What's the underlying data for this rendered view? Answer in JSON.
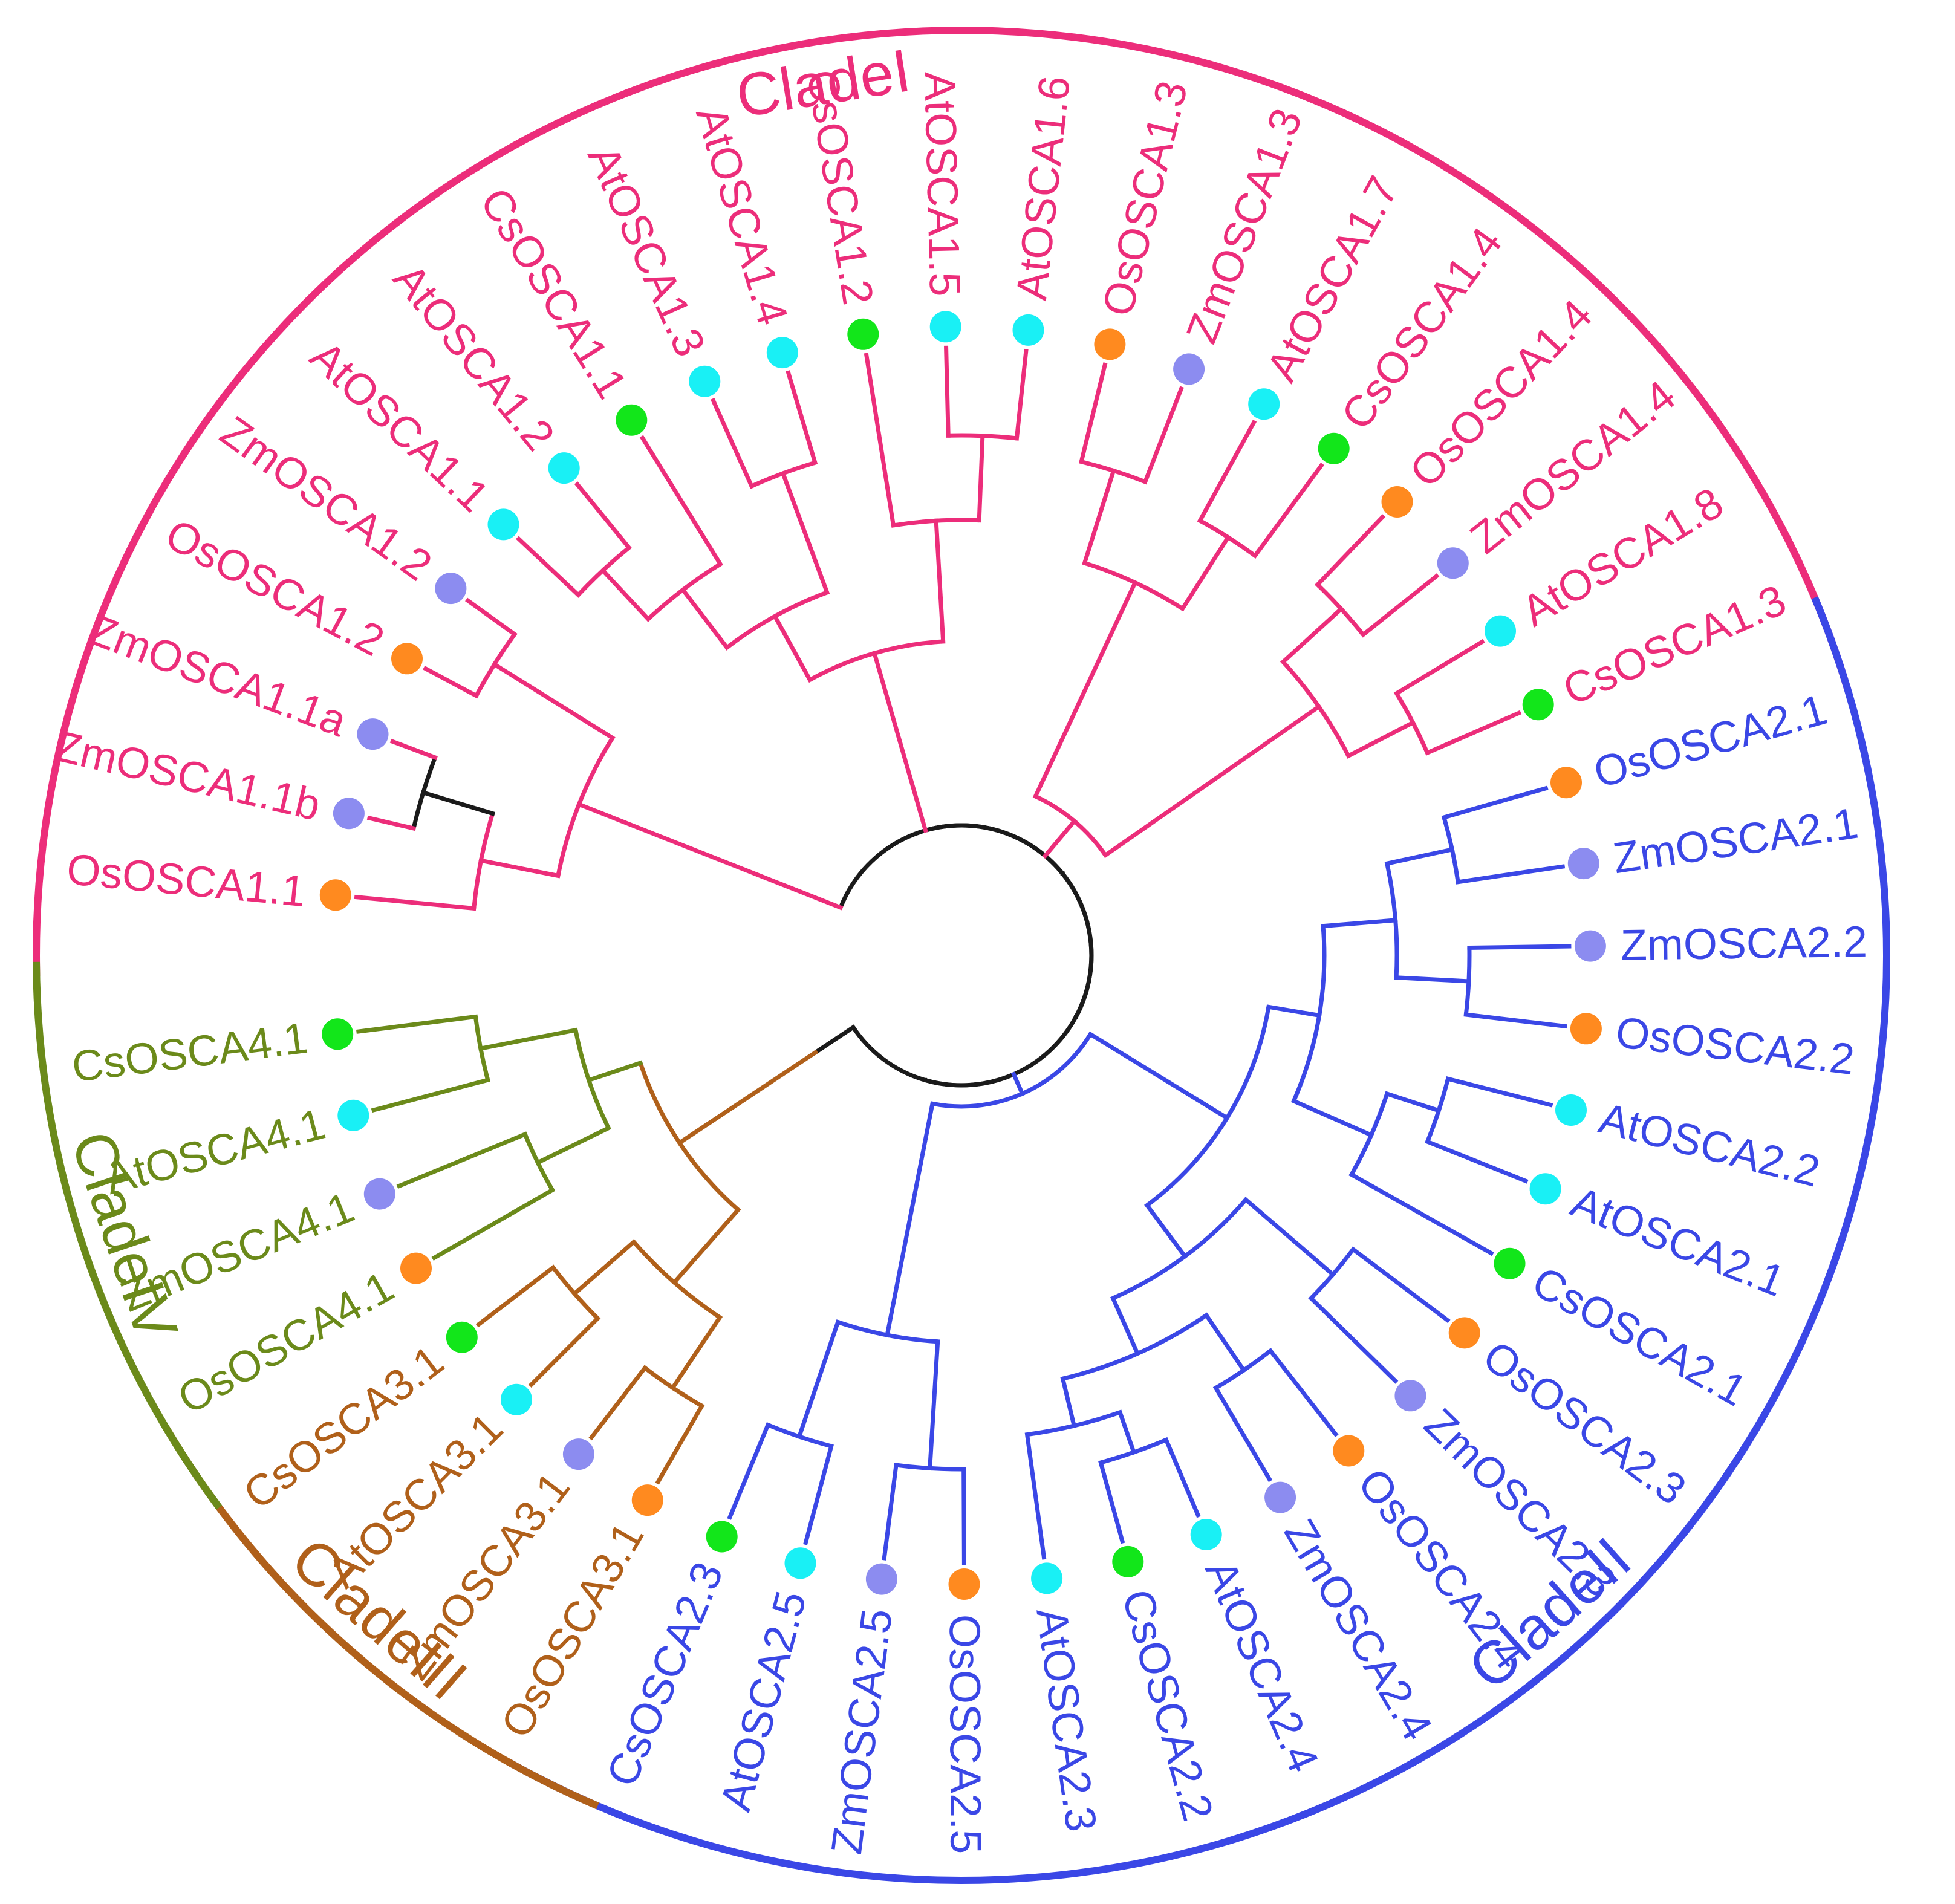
{
  "colors": {
    "clade_I": "#ec2d7a",
    "clade_II": "#3a47e6",
    "clade_III": "#b0601a",
    "clade_IV": "#6b8a1a",
    "trunk": "#1a1a1a",
    "species_Os": "#ff8a1f",
    "species_Zm": "#8c8cf0",
    "species_At": "#19f0f5",
    "species_Cs": "#12e61a"
  },
  "clades": [
    {
      "id": "I",
      "label": "CladeI",
      "color": "#ec2d7a"
    },
    {
      "id": "II",
      "label": "CladeII",
      "color": "#3a47e6"
    },
    {
      "id": "III",
      "label": "CladeIII",
      "color": "#b0601a"
    },
    {
      "id": "IV",
      "label": "CladeIV",
      "color": "#6b8a1a"
    }
  ],
  "leaves": [
    {
      "name": "OsOSCA1.1",
      "species": "Os",
      "clade": "I"
    },
    {
      "name": "ZmOSCA1.1b",
      "species": "Zm",
      "clade": "I"
    },
    {
      "name": "ZmOSCA1.1a",
      "species": "Zm",
      "clade": "I"
    },
    {
      "name": "OsOSCA1.2",
      "species": "Os",
      "clade": "I"
    },
    {
      "name": "ZmOSCA1.2",
      "species": "Zm",
      "clade": "I"
    },
    {
      "name": "AtOSCA1.1",
      "species": "At",
      "clade": "I"
    },
    {
      "name": "AtOSCA1.2",
      "species": "At",
      "clade": "I"
    },
    {
      "name": "CsOSCA1.1",
      "species": "Cs",
      "clade": "I"
    },
    {
      "name": "AtOSCA1.3",
      "species": "At",
      "clade": "I"
    },
    {
      "name": "AtOSCA1.4",
      "species": "At",
      "clade": "I"
    },
    {
      "name": "CsOSCA1.2",
      "species": "Cs",
      "clade": "I"
    },
    {
      "name": "AtOSCA1.5",
      "species": "At",
      "clade": "I"
    },
    {
      "name": "AtOSCA1.6",
      "species": "At",
      "clade": "I"
    },
    {
      "name": "OsOSCA1.3",
      "species": "Os",
      "clade": "I"
    },
    {
      "name": "ZmOSCA1.3",
      "species": "Zm",
      "clade": "I"
    },
    {
      "name": "AtOSCA1.7",
      "species": "At",
      "clade": "I"
    },
    {
      "name": "CsOSCA1.4",
      "species": "Cs",
      "clade": "I"
    },
    {
      "name": "OsOSCA1.4",
      "species": "Os",
      "clade": "I"
    },
    {
      "name": "ZmOSCA1.4",
      "species": "Zm",
      "clade": "I"
    },
    {
      "name": "AtOSCA1.8",
      "species": "At",
      "clade": "I"
    },
    {
      "name": "CsOSCA1.3",
      "species": "Cs",
      "clade": "I"
    },
    {
      "name": "OsOSCA2.1",
      "species": "Os",
      "clade": "II"
    },
    {
      "name": "ZmOSCA2.1",
      "species": "Zm",
      "clade": "II"
    },
    {
      "name": "ZmOSCA2.2",
      "species": "Zm",
      "clade": "II"
    },
    {
      "name": "OsOSCA2.2",
      "species": "Os",
      "clade": "II"
    },
    {
      "name": "AtOSCA2.2",
      "species": "At",
      "clade": "II"
    },
    {
      "name": "AtOSCA2.1",
      "species": "At",
      "clade": "II"
    },
    {
      "name": "CsOSCA2.1",
      "species": "Cs",
      "clade": "II"
    },
    {
      "name": "OsOSCA2.3",
      "species": "Os",
      "clade": "II"
    },
    {
      "name": "ZmOSCA2.3",
      "species": "Zm",
      "clade": "II"
    },
    {
      "name": "OsOSCA2.4",
      "species": "Os",
      "clade": "II"
    },
    {
      "name": "ZmOSCA2.4",
      "species": "Zm",
      "clade": "II"
    },
    {
      "name": "AtOSCA2.4",
      "species": "At",
      "clade": "II"
    },
    {
      "name": "CsOSCA2.2",
      "species": "Cs",
      "clade": "II"
    },
    {
      "name": "AtOSCA2.3",
      "species": "At",
      "clade": "II"
    },
    {
      "name": "OsOSCA2.5",
      "species": "Os",
      "clade": "II"
    },
    {
      "name": "ZmOSCA2.5",
      "species": "Zm",
      "clade": "II"
    },
    {
      "name": "AtOSCA2.5",
      "species": "At",
      "clade": "II"
    },
    {
      "name": "CsOSCA2.3",
      "species": "Cs",
      "clade": "II"
    },
    {
      "name": "OsOSCA3.1",
      "species": "Os",
      "clade": "III"
    },
    {
      "name": "ZmOSCA3.1",
      "species": "Zm",
      "clade": "III"
    },
    {
      "name": "AtOSCA3.1",
      "species": "At",
      "clade": "III"
    },
    {
      "name": "CsOSCA3.1",
      "species": "Cs",
      "clade": "III"
    },
    {
      "name": "OsOSCA4.1",
      "species": "Os",
      "clade": "IV"
    },
    {
      "name": "ZmOSCA4.1",
      "species": "Zm",
      "clade": "IV"
    },
    {
      "name": "AtOSCA4.1",
      "species": "At",
      "clade": "IV"
    },
    {
      "name": "CsOSCA4.1",
      "species": "Cs",
      "clade": "IV"
    }
  ]
}
